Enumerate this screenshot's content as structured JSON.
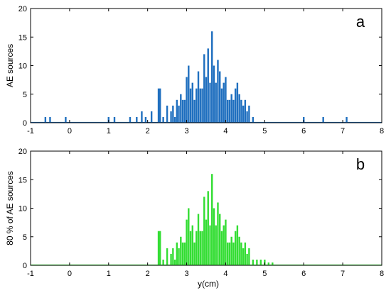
{
  "chart_data": [
    {
      "type": "bar",
      "panel_label": "a",
      "ylabel": "AE sources",
      "xlabel": "",
      "xlim": [
        -1,
        8
      ],
      "ylim": [
        0,
        20
      ],
      "xticks": [
        -1,
        0,
        1,
        2,
        3,
        4,
        5,
        6,
        7,
        8
      ],
      "yticks": [
        0,
        5,
        10,
        15,
        20
      ],
      "color": "#1f6fbf",
      "x": [
        -0.62,
        -0.5,
        -0.1,
        1.0,
        1.15,
        1.55,
        1.72,
        1.85,
        1.95,
        2.1,
        2.28,
        2.32,
        2.4,
        2.5,
        2.6,
        2.65,
        2.7,
        2.75,
        2.8,
        2.85,
        2.9,
        2.95,
        3.0,
        3.05,
        3.1,
        3.15,
        3.2,
        3.25,
        3.3,
        3.35,
        3.4,
        3.45,
        3.5,
        3.55,
        3.6,
        3.65,
        3.7,
        3.75,
        3.8,
        3.85,
        3.9,
        3.95,
        4.0,
        4.05,
        4.1,
        4.15,
        4.2,
        4.25,
        4.3,
        4.35,
        4.4,
        4.45,
        4.5,
        4.55,
        4.6,
        4.7,
        6.0,
        6.5,
        7.1
      ],
      "values": [
        1,
        1,
        1,
        1,
        1,
        1,
        1,
        2,
        1,
        2,
        6,
        6,
        1,
        3,
        2,
        3,
        1,
        4,
        3,
        5,
        4,
        4,
        8,
        10,
        6,
        7,
        4,
        6,
        9,
        6,
        6,
        12,
        8,
        13,
        7,
        16,
        10,
        7,
        11,
        9,
        6,
        7,
        8,
        4,
        4,
        5,
        4,
        6,
        7,
        5,
        4,
        3,
        4,
        2,
        3,
        1,
        1,
        1,
        1
      ]
    },
    {
      "type": "bar",
      "panel_label": "b",
      "ylabel": "80 % of AE sources",
      "xlabel": "y(cm)",
      "xlim": [
        -1,
        8
      ],
      "ylim": [
        0,
        20
      ],
      "xticks": [
        -1,
        0,
        1,
        2,
        3,
        4,
        5,
        6,
        7,
        8
      ],
      "yticks": [
        0,
        5,
        10,
        15,
        20
      ],
      "color": "#33dd33",
      "x": [
        2.28,
        2.32,
        2.4,
        2.5,
        2.6,
        2.65,
        2.7,
        2.75,
        2.8,
        2.85,
        2.9,
        2.95,
        3.0,
        3.05,
        3.1,
        3.15,
        3.2,
        3.25,
        3.3,
        3.35,
        3.4,
        3.45,
        3.5,
        3.55,
        3.6,
        3.65,
        3.7,
        3.75,
        3.8,
        3.85,
        3.9,
        3.95,
        4.0,
        4.05,
        4.1,
        4.15,
        4.2,
        4.25,
        4.3,
        4.35,
        4.4,
        4.45,
        4.5,
        4.55,
        4.6,
        4.7,
        4.8,
        4.9,
        5.0,
        5.1,
        5.2
      ],
      "values": [
        6,
        6,
        1,
        3,
        2,
        3,
        1,
        4,
        3,
        5,
        4,
        4,
        8,
        10,
        6,
        7,
        4,
        6,
        9,
        6,
        6,
        12,
        8,
        13,
        7,
        16,
        10,
        7,
        11,
        9,
        6,
        7,
        8,
        4,
        4,
        5,
        4,
        6,
        7,
        5,
        4,
        3,
        4,
        2,
        3,
        1,
        1,
        1,
        1,
        0.5,
        0.5
      ]
    }
  ]
}
